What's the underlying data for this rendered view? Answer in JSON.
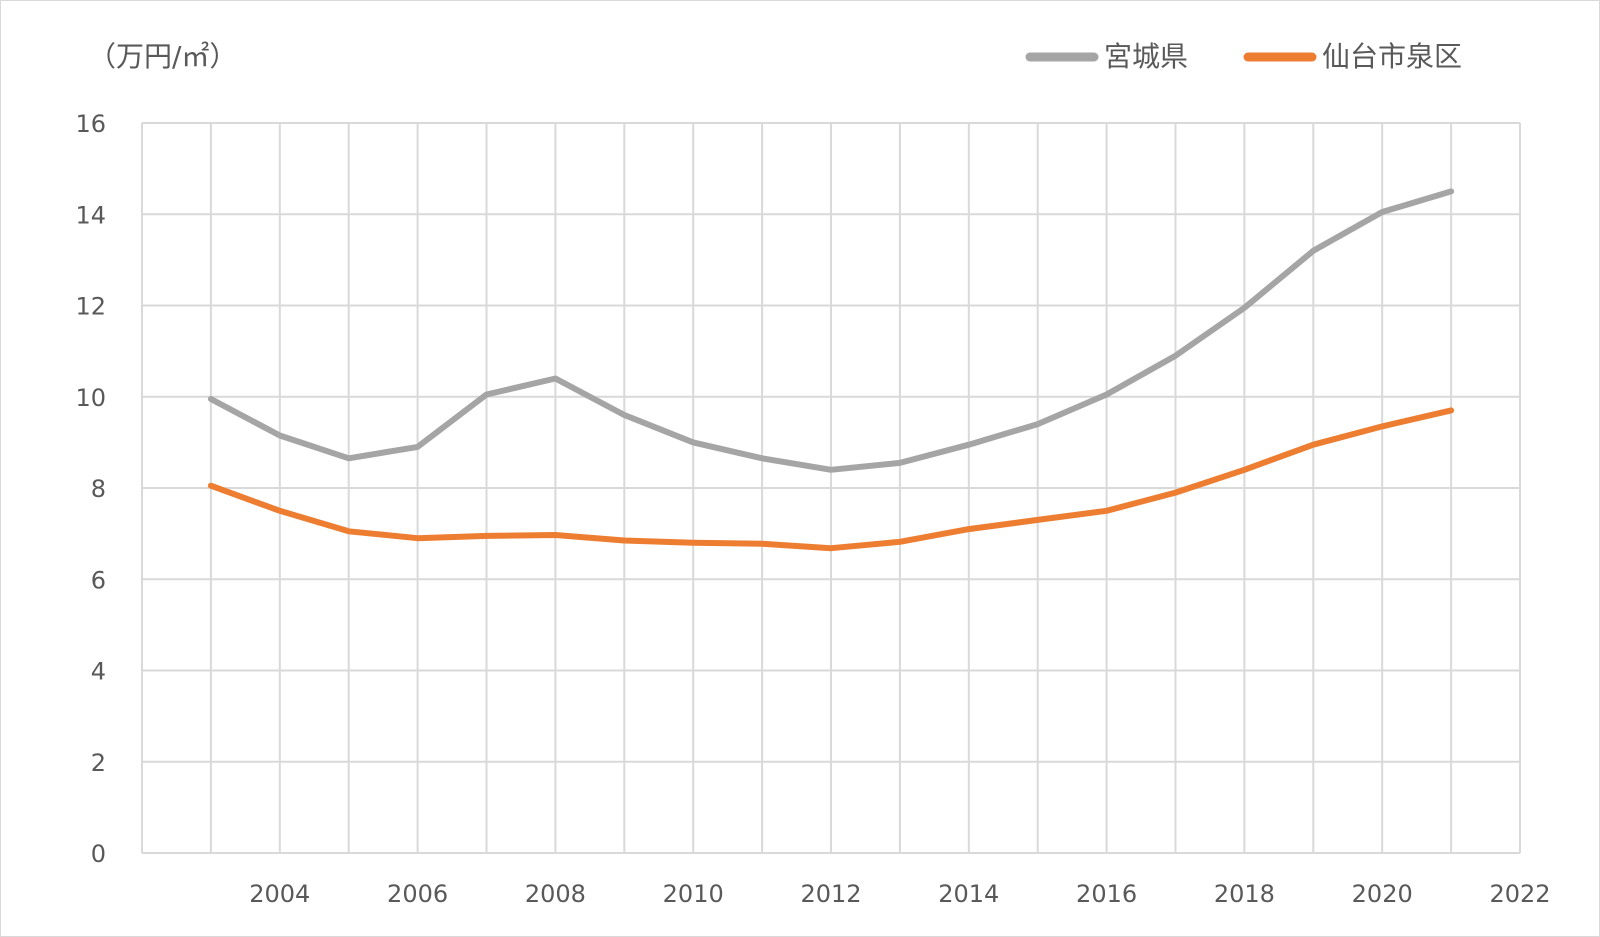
{
  "chart_data": {
    "type": "line",
    "ylabel": "（万円/㎡）",
    "ylim": [
      0,
      16
    ],
    "yticks": [
      "0",
      "2",
      "4",
      "6",
      "8",
      "10",
      "12",
      "14",
      "16"
    ],
    "xlim": [
      2002,
      2022
    ],
    "xticks": [
      "2004",
      "2006",
      "2008",
      "2010",
      "2012",
      "2014",
      "2016",
      "2018",
      "2020",
      "2022"
    ],
    "grid": true,
    "legend_position": "top-right",
    "x": [
      2003,
      2004,
      2005,
      2006,
      2007,
      2008,
      2009,
      2010,
      2011,
      2012,
      2013,
      2014,
      2015,
      2016,
      2017,
      2018,
      2019,
      2020,
      2021
    ],
    "series": [
      {
        "name": "宮城県",
        "color": "#a5a5a5",
        "values": [
          9.95,
          9.15,
          8.65,
          8.9,
          10.05,
          10.4,
          9.6,
          9.0,
          8.65,
          8.4,
          8.55,
          8.95,
          9.4,
          10.05,
          10.9,
          11.95,
          13.2,
          14.05,
          14.5
        ]
      },
      {
        "name": "仙台市泉区",
        "color": "#ed7d31",
        "values": [
          8.05,
          7.5,
          7.05,
          6.9,
          6.95,
          6.97,
          6.85,
          6.8,
          6.78,
          6.68,
          6.82,
          7.1,
          7.3,
          7.5,
          7.9,
          8.4,
          8.95,
          9.35,
          9.7
        ]
      }
    ]
  }
}
